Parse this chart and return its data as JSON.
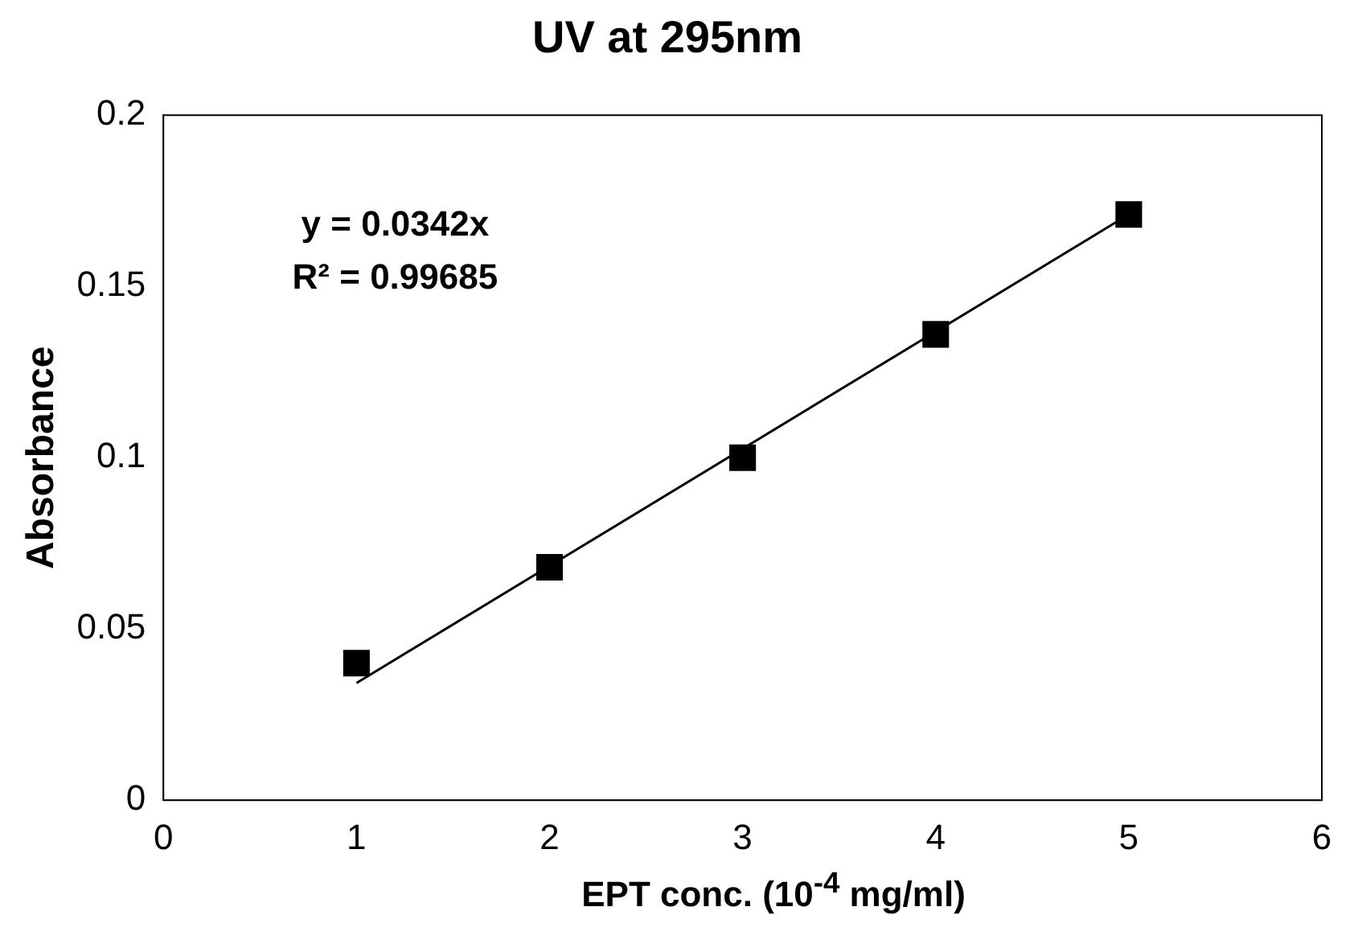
{
  "chart_data": {
    "type": "scatter",
    "title": "UV at 295nm",
    "xlabel": "EPT conc. (10$^{-4}$ mg/ml)",
    "ylabel": "Absorbance",
    "x": [
      1,
      2,
      3,
      4,
      5
    ],
    "series": [
      {
        "type": "scatter",
        "color": "#000000",
        "values": [
          0.04,
          0.068,
          0.1,
          0.136,
          0.171
        ],
        "marker": "square"
      },
      {
        "type": "line",
        "color": "#000000",
        "x": [
          1,
          5
        ],
        "values": [
          0.0342,
          0.171
        ],
        "marker": "none",
        "line_style": "solid"
      }
    ],
    "annotations": [
      "y = 0.0342x",
      "R² = 0.99685"
    ],
    "xlim": [
      0,
      6
    ],
    "xticks": [
      0,
      1,
      2,
      3,
      4,
      5,
      6
    ],
    "ylim": [
      0,
      0.2
    ],
    "yticks": [
      0,
      0.05,
      0.1,
      0.15,
      0.2
    ],
    "grid": false,
    "legend": false
  }
}
